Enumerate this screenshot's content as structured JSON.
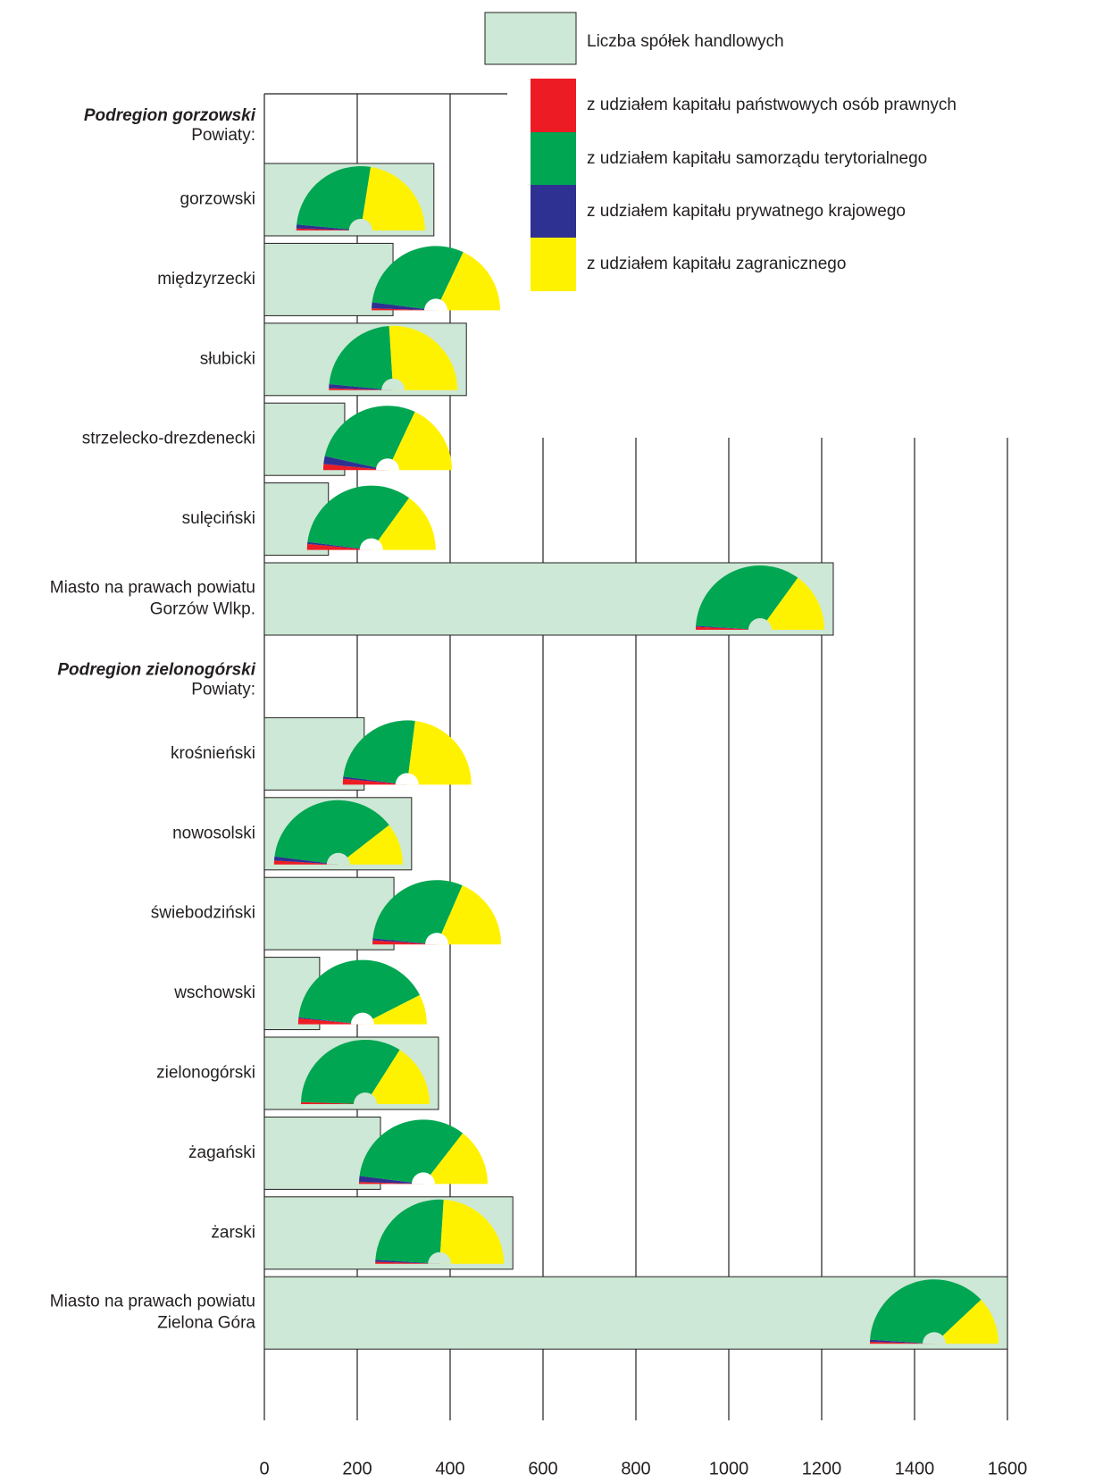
{
  "chart_data": {
    "type": "bar",
    "bar_name": "Liczba spółek handlowych",
    "bar_color": "#cde8d6",
    "xlim": [
      0,
      1600
    ],
    "xticks": [
      0,
      200,
      400,
      600,
      800,
      1000,
      1200,
      1400,
      1600
    ],
    "grid": true,
    "series": [
      {
        "name": "z udziałem kapitału państwowych osób prawnych",
        "color": "#ed1c24"
      },
      {
        "name": "z udziałem kapitału samorządu terytorialnego",
        "color": "#00a651"
      },
      {
        "name": "z udziałem kapitału prywatnego krajowego",
        "color": "#2e3192"
      },
      {
        "name": "z udziałem kapitału zagranicznego",
        "color": "#fff200"
      }
    ],
    "groups": [
      {
        "title": "Podregion gorzowski",
        "subtitle": "Powiaty:",
        "categories": [
          [
            "gorzowski"
          ],
          [
            "międzyrzecki"
          ],
          [
            "słubicki"
          ],
          [
            "strzelecko-drezdenecki"
          ],
          [
            "sulęciński"
          ],
          [
            "Miasto na prawach powiatu",
            "Gorzów Wlkp."
          ]
        ],
        "values": [
          365,
          277,
          435,
          173,
          138,
          1225
        ],
        "series": [
          {
            "values": [
              1,
              1,
              1,
              3,
              3,
              1.5
            ]
          },
          {
            "values": [
              52,
              60,
              45,
              57,
              66,
              68
            ]
          },
          {
            "values": [
              2,
              3,
              2,
              4,
              1,
              0.5
            ]
          },
          {
            "values": [
              45,
              36,
              52,
              36,
              30,
              30
            ]
          }
        ]
      },
      {
        "title": "Podregion zielonogórski",
        "subtitle": "Powiaty:",
        "categories": [
          [
            "krośnieński"
          ],
          [
            "nowosolski"
          ],
          [
            "świebodziński"
          ],
          [
            "wschowski"
          ],
          [
            "zielonogórski"
          ],
          [
            "żagański"
          ],
          [
            "żarski"
          ],
          [
            "Miasto na prawach powiatu",
            "Zielona Góra"
          ]
        ],
        "values": [
          215,
          317,
          279,
          119,
          375,
          250,
          535,
          1600
        ],
        "series": [
          {
            "values": [
              3,
              2,
              2,
              3,
              1,
              1,
              1,
              1
            ]
          },
          {
            "values": [
              50,
              75,
              60,
              81.5,
              67,
              67,
              50,
              74
            ]
          },
          {
            "values": [
              1,
              2,
              1,
              0.5,
              0,
              3,
              1,
              1
            ]
          },
          {
            "values": [
              46,
              21,
              37,
              15,
              32,
              29,
              48,
              24
            ]
          }
        ]
      }
    ]
  }
}
